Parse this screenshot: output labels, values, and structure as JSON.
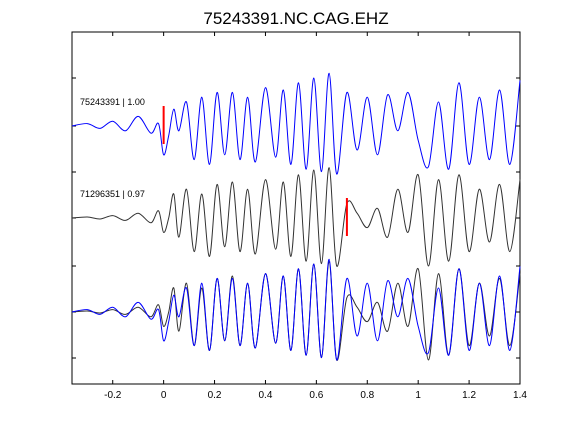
{
  "chart_data": {
    "type": "line",
    "title": "75243391.NC.CAG.EHZ",
    "xlabel": "",
    "ylabel": "",
    "xlim": [
      -0.36,
      1.4
    ],
    "x_ticks": [
      "-0.2",
      "0",
      "0.2",
      "0.4",
      "0.6",
      "0.8",
      "1",
      "1.2",
      "1.4"
    ],
    "x_tick_values": [
      -0.2,
      0,
      0.2,
      0.4,
      0.6,
      0.8,
      1.0,
      1.2,
      1.4
    ],
    "grid": false,
    "colors": {
      "primary": "#0000ff",
      "secondary": "#333333",
      "marker": "#ff0000",
      "axes": "#000000"
    },
    "traces": [
      {
        "label": "75243391 | 1.00",
        "color": "#0000ff",
        "pick_time": 0.0,
        "x": [
          -0.36,
          -0.3,
          -0.25,
          -0.2,
          -0.15,
          -0.1,
          -0.05,
          -0.02,
          0.0,
          0.02,
          0.04,
          0.06,
          0.09,
          0.12,
          0.15,
          0.18,
          0.21,
          0.24,
          0.27,
          0.3,
          0.33,
          0.36,
          0.4,
          0.44,
          0.47,
          0.5,
          0.53,
          0.56,
          0.59,
          0.62,
          0.65,
          0.68,
          0.72,
          0.76,
          0.8,
          0.84,
          0.88,
          0.92,
          0.96,
          1.0,
          1.04,
          1.08,
          1.12,
          1.16,
          1.2,
          1.24,
          1.28,
          1.32,
          1.36,
          1.4
        ],
        "y": [
          0.0,
          0.05,
          -0.05,
          0.1,
          -0.1,
          0.2,
          -0.15,
          0.05,
          -0.6,
          -0.2,
          0.35,
          -0.1,
          0.5,
          -0.7,
          0.6,
          -0.8,
          0.7,
          -0.6,
          0.7,
          -0.7,
          0.6,
          -0.75,
          0.8,
          -0.65,
          0.75,
          -0.8,
          0.9,
          -0.9,
          1.0,
          -0.95,
          1.1,
          -1.0,
          0.7,
          -0.5,
          0.6,
          -0.6,
          0.65,
          -0.1,
          0.7,
          -0.3,
          -0.85,
          0.5,
          -0.9,
          0.9,
          -0.8,
          0.6,
          -0.7,
          0.75,
          -0.8,
          0.95
        ]
      },
      {
        "label": "71296351 | 0.97",
        "color": "#333333",
        "pick_time": 0.72,
        "x": [
          -0.36,
          -0.3,
          -0.25,
          -0.2,
          -0.15,
          -0.1,
          -0.05,
          -0.02,
          0.0,
          0.02,
          0.04,
          0.06,
          0.09,
          0.12,
          0.15,
          0.18,
          0.21,
          0.24,
          0.27,
          0.3,
          0.33,
          0.36,
          0.4,
          0.44,
          0.47,
          0.5,
          0.53,
          0.56,
          0.59,
          0.62,
          0.65,
          0.68,
          0.72,
          0.76,
          0.8,
          0.84,
          0.88,
          0.92,
          0.96,
          1.0,
          1.04,
          1.08,
          1.12,
          1.16,
          1.2,
          1.24,
          1.28,
          1.32,
          1.36,
          1.4
        ],
        "y": [
          0.0,
          0.02,
          -0.02,
          0.05,
          -0.05,
          0.1,
          -0.1,
          0.15,
          -0.3,
          0.0,
          0.5,
          -0.4,
          0.6,
          -0.7,
          0.5,
          -0.8,
          0.7,
          -0.6,
          0.75,
          -0.7,
          0.6,
          -0.75,
          0.8,
          -0.65,
          0.75,
          -0.8,
          0.9,
          -0.9,
          1.0,
          -0.95,
          1.05,
          -1.0,
          0.3,
          0.1,
          -0.2,
          0.2,
          -0.4,
          0.6,
          -0.3,
          0.9,
          -1.0,
          0.8,
          -0.9,
          0.9,
          -0.7,
          0.6,
          -0.5,
          0.7,
          -0.7,
          0.8
        ]
      },
      {
        "label": "",
        "overlay": true,
        "series": [
          {
            "color": "#333333",
            "source": 1
          },
          {
            "color": "#0000ff",
            "source": 0
          }
        ]
      }
    ]
  }
}
